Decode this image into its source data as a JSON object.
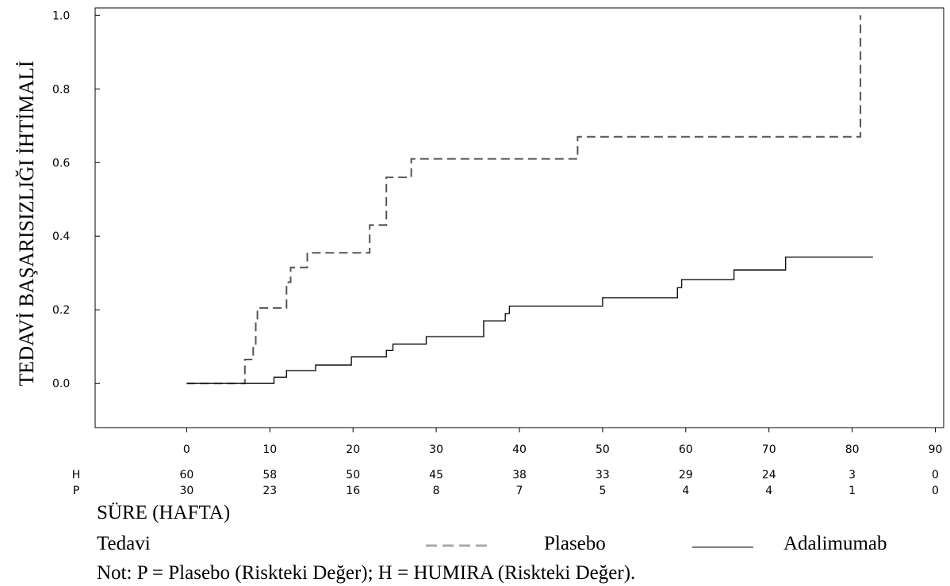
{
  "chart_data": {
    "type": "line",
    "title": "",
    "ylabel": "TEDAVİ BAŞARISIZLIĞI İHTİMALİ",
    "xlabel": "SÜRE (HAFTA)",
    "xlim": [
      -11,
      91
    ],
    "ylim": [
      -0.12,
      1.02
    ],
    "xticks": [
      0,
      10,
      20,
      30,
      40,
      50,
      60,
      70,
      80,
      90
    ],
    "yticks": [
      0.0,
      0.2,
      0.4,
      0.6,
      0.8,
      1.0
    ],
    "ytick_labels": [
      "0.0",
      "0.2",
      "0.4",
      "0.6",
      "0.8",
      "1.0"
    ],
    "grid": false,
    "series": [
      {
        "name": "Plasebo",
        "style": "dashed",
        "color": "#555555",
        "points": [
          [
            0,
            0.0
          ],
          [
            7,
            0.0
          ],
          [
            7,
            0.065
          ],
          [
            8,
            0.065
          ],
          [
            8,
            0.1
          ],
          [
            8.3,
            0.1
          ],
          [
            8.3,
            0.17
          ],
          [
            8.5,
            0.17
          ],
          [
            8.5,
            0.205
          ],
          [
            12,
            0.205
          ],
          [
            12,
            0.275
          ],
          [
            12.5,
            0.275
          ],
          [
            12.5,
            0.315
          ],
          [
            14.5,
            0.315
          ],
          [
            14.5,
            0.355
          ],
          [
            22,
            0.355
          ],
          [
            22,
            0.43
          ],
          [
            24,
            0.43
          ],
          [
            24,
            0.56
          ],
          [
            27,
            0.56
          ],
          [
            27,
            0.61
          ],
          [
            47,
            0.61
          ],
          [
            47,
            0.67
          ],
          [
            81,
            0.67
          ],
          [
            81,
            1.0
          ]
        ]
      },
      {
        "name": "Adalimumab",
        "style": "solid",
        "color": "#111111",
        "points": [
          [
            0,
            0.0
          ],
          [
            10.5,
            0.0
          ],
          [
            10.5,
            0.017
          ],
          [
            12,
            0.017
          ],
          [
            12,
            0.035
          ],
          [
            15.5,
            0.035
          ],
          [
            15.5,
            0.05
          ],
          [
            19.8,
            0.05
          ],
          [
            19.8,
            0.072
          ],
          [
            24,
            0.072
          ],
          [
            24,
            0.09
          ],
          [
            24.8,
            0.09
          ],
          [
            24.8,
            0.107
          ],
          [
            28.8,
            0.107
          ],
          [
            28.8,
            0.127
          ],
          [
            35.7,
            0.127
          ],
          [
            35.7,
            0.17
          ],
          [
            38.3,
            0.17
          ],
          [
            38.3,
            0.19
          ],
          [
            38.8,
            0.19
          ],
          [
            38.8,
            0.21
          ],
          [
            50,
            0.21
          ],
          [
            50,
            0.233
          ],
          [
            59,
            0.233
          ],
          [
            59,
            0.26
          ],
          [
            59.5,
            0.26
          ],
          [
            59.5,
            0.282
          ],
          [
            65.8,
            0.282
          ],
          [
            65.8,
            0.308
          ],
          [
            72,
            0.308
          ],
          [
            72,
            0.343
          ],
          [
            82.5,
            0.343
          ]
        ]
      }
    ],
    "risk_table": {
      "x": [
        0,
        10,
        20,
        30,
        40,
        50,
        60,
        70,
        80,
        90
      ],
      "rows": [
        {
          "label": "H",
          "values": [
            "60",
            "58",
            "50",
            "45",
            "38",
            "33",
            "29",
            "24",
            "3",
            "0"
          ]
        },
        {
          "label": "P",
          "values": [
            "30",
            "23",
            "16",
            "8",
            "7",
            "5",
            "4",
            "4",
            "1",
            "0"
          ]
        }
      ]
    }
  },
  "labels": {
    "ylabel": "TEDAVİ BAŞARISIZLIĞI İHTİMALİ",
    "xlabel": "SÜRE (HAFTA)",
    "legend_title": "Tedavi",
    "legend_placebo": "Plasebo",
    "legend_adalimumab": "Adalimumab",
    "note": "Not: P = Plasebo (Riskteki Değer); H = HUMIRA (Riskteki Değer)."
  }
}
